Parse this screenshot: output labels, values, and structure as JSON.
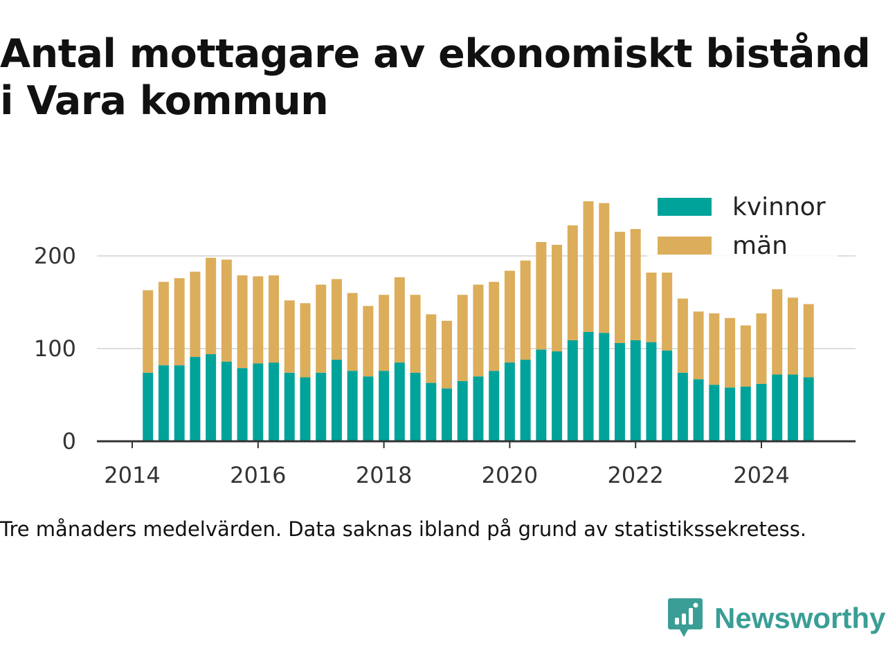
{
  "title": "Antal mottagare av ekonomiskt bistånd i Vara kommun",
  "caption": "Tre månaders medelvärden. Data saknas ibland på grund av statistikssekretess.",
  "brand": {
    "name": "Newsworthy",
    "icon": "newsworthy-logo-icon",
    "color": "#3a9e96"
  },
  "chart_data": {
    "type": "bar",
    "stacked": true,
    "x_ticks": [
      "2014",
      "2016",
      "2018",
      "2020",
      "2022",
      "2024"
    ],
    "y_ticks": [
      "0",
      "100",
      "200"
    ],
    "ylim": [
      0,
      270
    ],
    "grid": true,
    "legend_position": "top-right",
    "x": [
      "2014-04",
      "2014-07",
      "2014-10",
      "2015-01",
      "2015-04",
      "2015-07",
      "2015-10",
      "2016-01",
      "2016-04",
      "2016-07",
      "2016-10",
      "2017-01",
      "2017-04",
      "2017-07",
      "2017-10",
      "2018-01",
      "2018-04",
      "2018-07",
      "2018-10",
      "2019-01",
      "2019-04",
      "2019-07",
      "2019-10",
      "2020-01",
      "2020-04",
      "2020-07",
      "2020-10",
      "2021-01",
      "2021-04",
      "2021-07",
      "2021-10",
      "2022-01",
      "2022-04",
      "2022-07",
      "2022-10",
      "2023-01",
      "2023-04",
      "2023-07",
      "2023-10",
      "2024-01",
      "2024-04",
      "2024-07",
      "2024-10"
    ],
    "series": [
      {
        "name": "kvinnor",
        "color": "#00a39a",
        "values": [
          74,
          82,
          82,
          91,
          94,
          86,
          79,
          84,
          85,
          74,
          69,
          74,
          88,
          76,
          70,
          76,
          85,
          74,
          63,
          57,
          65,
          70,
          76,
          85,
          88,
          99,
          97,
          109,
          118,
          117,
          106,
          109,
          107,
          98,
          74,
          67,
          61,
          58,
          59,
          62,
          72,
          72,
          69
        ]
      },
      {
        "name": "män",
        "color": "#dcad5a",
        "values": [
          89,
          90,
          94,
          92,
          104,
          110,
          100,
          94,
          94,
          78,
          80,
          95,
          87,
          84,
          76,
          82,
          92,
          84,
          74,
          73,
          93,
          99,
          96,
          99,
          107,
          116,
          115,
          124,
          141,
          140,
          120,
          120,
          75,
          84,
          80,
          73,
          77,
          75,
          66,
          76,
          92,
          83,
          79
        ]
      }
    ]
  }
}
